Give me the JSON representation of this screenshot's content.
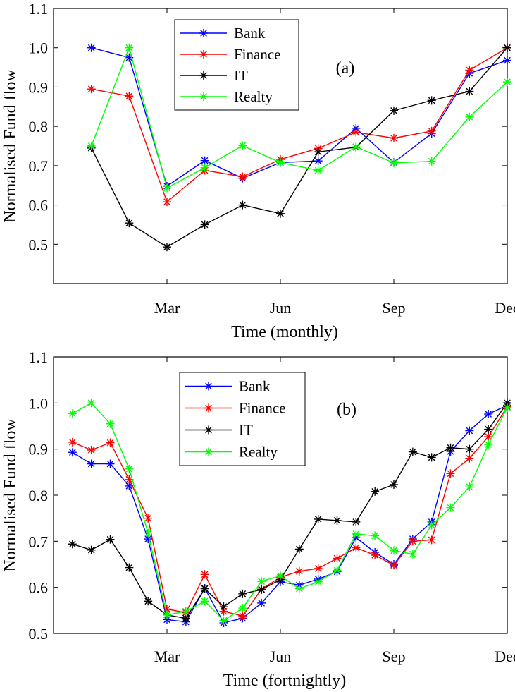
{
  "chart_data": [
    {
      "type": "line",
      "panel_label": "(a)",
      "xlabel": "Time (monthly)",
      "ylabel": "Normalised Fund flow",
      "xlim": [
        0,
        12
      ],
      "ylim": [
        0.4,
        1.1
      ],
      "yticks": [
        0.5,
        0.6,
        0.7,
        0.8,
        0.9,
        1.0,
        1.1
      ],
      "ytick_labels": [
        "0.5",
        "0.6",
        "0.7",
        "0.8",
        "0.9",
        "1.0",
        "1.1"
      ],
      "xticks": [
        3,
        6,
        9,
        12
      ],
      "xtick_labels": [
        "Mar",
        "Jun",
        "Sep",
        "Dec"
      ],
      "x": [
        1,
        2,
        3,
        4,
        5,
        6,
        7,
        8,
        9,
        10,
        11,
        12
      ],
      "legend_position": "top-center",
      "series": [
        {
          "name": "Bank",
          "color": "#0000ff",
          "values": [
            1.0,
            0.975,
            0.648,
            0.713,
            0.668,
            0.708,
            0.712,
            0.795,
            0.708,
            0.782,
            0.935,
            0.968
          ]
        },
        {
          "name": "Finance",
          "color": "#ff0000",
          "values": [
            0.895,
            0.877,
            0.608,
            0.688,
            0.672,
            0.716,
            0.744,
            0.785,
            0.77,
            0.788,
            0.943,
            1.0
          ]
        },
        {
          "name": "IT",
          "color": "#000000",
          "values": [
            0.745,
            0.554,
            0.493,
            0.55,
            0.6,
            0.578,
            0.735,
            0.747,
            0.84,
            0.866,
            0.889,
            1.0
          ]
        },
        {
          "name": "Realty",
          "color": "#00ff00",
          "values": [
            0.75,
            1.0,
            0.643,
            0.695,
            0.751,
            0.708,
            0.688,
            0.748,
            0.707,
            0.711,
            0.824,
            0.913
          ]
        }
      ]
    },
    {
      "type": "line",
      "panel_label": "(b)",
      "xlabel": "Time (fortnightly)",
      "ylabel": "Normalised Fund flow",
      "xlim": [
        0,
        24
      ],
      "ylim": [
        0.5,
        1.1
      ],
      "yticks": [
        0.5,
        0.6,
        0.7,
        0.8,
        0.9,
        1.0,
        1.1
      ],
      "ytick_labels": [
        "0.5",
        "0.6",
        "0.7",
        "0.8",
        "0.9",
        "1.0",
        "1.1"
      ],
      "xticks": [
        6,
        12,
        18,
        24
      ],
      "xtick_labels": [
        "Mar",
        "Jun",
        "Sep",
        "Dec"
      ],
      "x": [
        1,
        2,
        3,
        4,
        5,
        6,
        7,
        8,
        9,
        10,
        11,
        12,
        13,
        14,
        15,
        16,
        17,
        18,
        19,
        20,
        21,
        22,
        23,
        24
      ],
      "legend_position": "top-center",
      "series": [
        {
          "name": "Bank",
          "color": "#0000ff",
          "values": [
            0.893,
            0.868,
            0.868,
            0.82,
            0.705,
            0.53,
            0.525,
            0.598,
            0.523,
            0.533,
            0.566,
            0.612,
            0.605,
            0.618,
            0.634,
            0.708,
            0.676,
            0.65,
            0.705,
            0.742,
            0.895,
            0.94,
            0.976,
            0.995
          ]
        },
        {
          "name": "Finance",
          "color": "#ff0000",
          "values": [
            0.915,
            0.898,
            0.914,
            0.834,
            0.75,
            0.553,
            0.545,
            0.628,
            0.548,
            0.538,
            0.596,
            0.622,
            0.635,
            0.641,
            0.663,
            0.686,
            0.67,
            0.648,
            0.7,
            0.703,
            0.847,
            0.88,
            0.927,
            0.992
          ]
        },
        {
          "name": "IT",
          "color": "#000000",
          "values": [
            0.694,
            0.681,
            0.704,
            0.643,
            0.57,
            0.54,
            0.533,
            0.597,
            0.558,
            0.586,
            0.595,
            0.617,
            0.683,
            0.748,
            0.745,
            0.742,
            0.808,
            0.823,
            0.894,
            0.882,
            0.903,
            0.9,
            0.943,
            1.0
          ]
        },
        {
          "name": "Realty",
          "color": "#00ff00",
          "values": [
            0.977,
            1.0,
            0.955,
            0.857,
            0.718,
            0.54,
            0.548,
            0.57,
            0.528,
            0.555,
            0.613,
            0.625,
            0.597,
            0.612,
            0.637,
            0.716,
            0.712,
            0.68,
            0.672,
            0.735,
            0.773,
            0.818,
            0.91,
            0.99
          ]
        }
      ]
    }
  ]
}
